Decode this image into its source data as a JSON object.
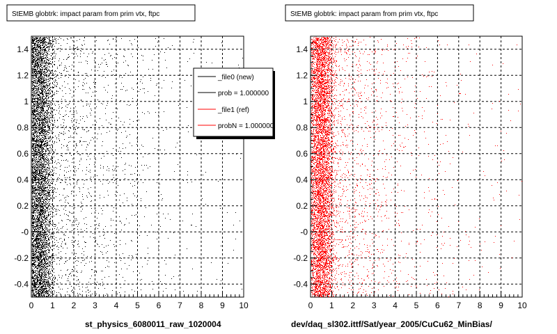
{
  "chart_data": [
    {
      "type": "scatter",
      "title": "StEMB globtrk: impact param from prim vtx, ftpc",
      "xlabel": "st_physics_6080011_raw_1020004",
      "xlim": [
        0,
        10
      ],
      "ylim": [
        -0.5,
        1.5
      ],
      "x_ticks": [
        "0",
        "1",
        "2",
        "3",
        "4",
        "5",
        "6",
        "7",
        "8",
        "9",
        "10"
      ],
      "y_ticks": [
        "-0.4",
        "-0.2",
        "-0",
        "0.2",
        "0.4",
        "0.6",
        "0.8",
        "1",
        "1.2",
        "1.4"
      ],
      "grid": true,
      "marker_color": "#000000",
      "distribution": {
        "peak_x": 0.4,
        "dense_region_x": [
          0,
          1.2
        ],
        "tail_extends_to_x": 10
      },
      "legend": {
        "placement": "top-right",
        "entries": [
          {
            "label": "_file0 (new)",
            "color": "#000000"
          },
          {
            "label": "prob = 1.000000",
            "color": "#000000"
          },
          {
            "label": "_file1 (ref)",
            "color": "#ff0000"
          },
          {
            "label": "probN = 1.000000",
            "color": "#ff0000"
          }
        ]
      }
    },
    {
      "type": "scatter",
      "title": "StEMB globtrk: impact param from prim vtx, ftpc",
      "xlabel": "dev/daq_sl302.ittf/Sat/year_2005/CuCu62_MinBias/",
      "xlim": [
        0,
        10
      ],
      "ylim": [
        -0.5,
        1.5
      ],
      "x_ticks": [
        "0",
        "1",
        "2",
        "3",
        "4",
        "5",
        "6",
        "7",
        "8",
        "9",
        "10"
      ],
      "y_ticks": [
        "-0.4",
        "-0.2",
        "-0",
        "0.2",
        "0.4",
        "0.6",
        "0.8",
        "1",
        "1.2",
        "1.4"
      ],
      "grid": true,
      "marker_color": "#ff0000",
      "distribution": {
        "peak_x": 0.5,
        "dense_region_x": [
          0,
          1.5
        ],
        "tail_extends_to_x": 10
      }
    }
  ]
}
